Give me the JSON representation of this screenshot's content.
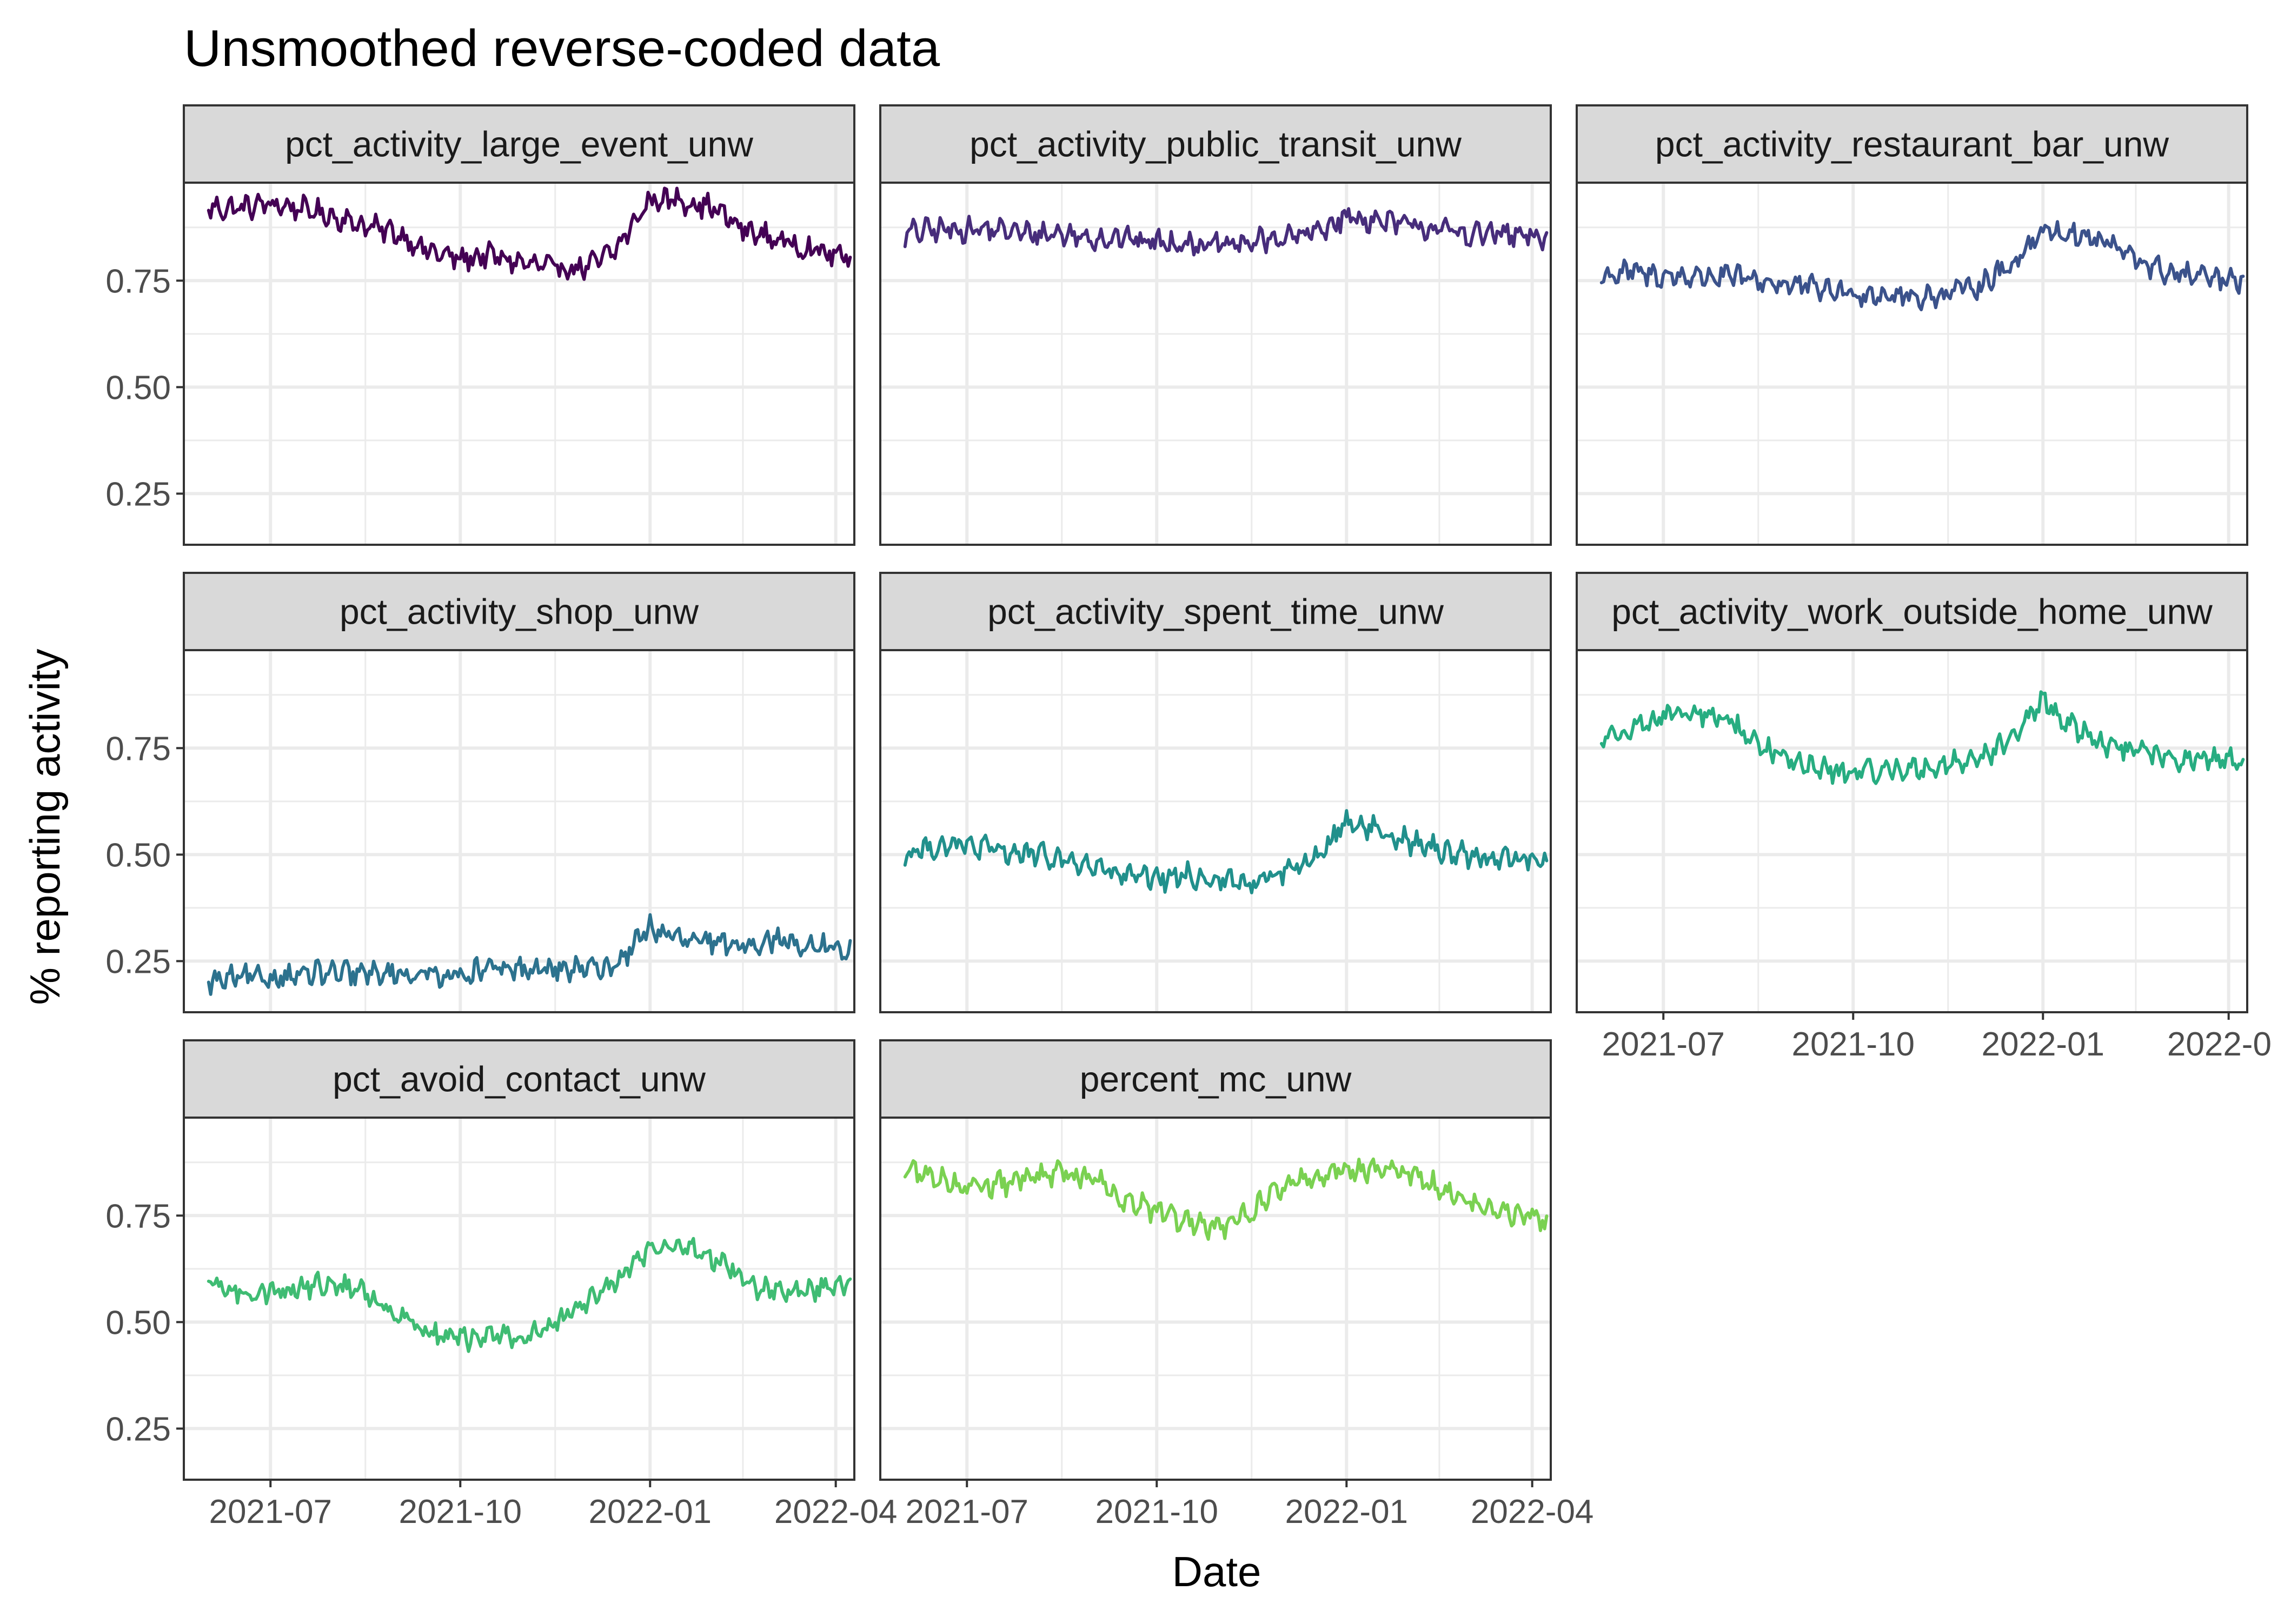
{
  "title": "Unsmoothed reverse-coded data",
  "xlabel": "Date",
  "ylabel": "% reporting activity",
  "chart_data": {
    "type": "line",
    "facets": 8,
    "facet_columns": 3,
    "x_ticks": [
      "2021-07",
      "2021-10",
      "2022-01",
      "2022-04"
    ],
    "x_tick_dates": [
      "2021-07-01",
      "2021-10-01",
      "2022-01-01",
      "2022-04-01"
    ],
    "xlim": [
      "2021-05-20",
      "2022-04-10"
    ],
    "y_ticks": [
      "0.25",
      "0.50",
      "0.75"
    ],
    "y_tick_values": [
      0.25,
      0.5,
      0.75
    ],
    "ylim": [
      0.13,
      0.98
    ],
    "grid": true,
    "series": [
      {
        "name": "pct_activity_large_event_unw",
        "color": "#440154",
        "x": [
          "2021-06-01",
          "2021-06-15",
          "2021-07-01",
          "2021-07-15",
          "2021-08-01",
          "2021-08-15",
          "2021-09-01",
          "2021-09-15",
          "2021-10-01",
          "2021-10-15",
          "2021-11-01",
          "2021-11-15",
          "2021-12-01",
          "2021-12-15",
          "2022-01-01",
          "2022-01-15",
          "2022-02-01",
          "2022-02-15",
          "2022-03-01",
          "2022-03-15",
          "2022-04-01",
          "2022-04-08"
        ],
        "y": [
          0.92,
          0.92,
          0.93,
          0.92,
          0.9,
          0.88,
          0.86,
          0.82,
          0.8,
          0.81,
          0.79,
          0.78,
          0.78,
          0.82,
          0.94,
          0.94,
          0.92,
          0.87,
          0.85,
          0.83,
          0.81,
          0.8
        ]
      },
      {
        "name": "pct_activity_public_transit_unw",
        "color": "#472D7B",
        "x": [
          "2021-06-01",
          "2021-06-15",
          "2021-07-01",
          "2021-07-15",
          "2021-08-01",
          "2021-08-15",
          "2021-09-01",
          "2021-09-15",
          "2021-10-01",
          "2021-10-15",
          "2021-11-01",
          "2021-11-15",
          "2021-12-01",
          "2021-12-15",
          "2022-01-01",
          "2022-01-15",
          "2022-02-01",
          "2022-02-15",
          "2022-03-01",
          "2022-03-15",
          "2022-04-01",
          "2022-04-08"
        ],
        "y": [
          0.86,
          0.87,
          0.87,
          0.87,
          0.86,
          0.86,
          0.85,
          0.85,
          0.84,
          0.84,
          0.83,
          0.84,
          0.85,
          0.86,
          0.9,
          0.89,
          0.88,
          0.87,
          0.86,
          0.86,
          0.85,
          0.85
        ]
      },
      {
        "name": "pct_activity_restaurant_bar_unw",
        "color": "#3B528B",
        "x": [
          "2021-06-01",
          "2021-06-15",
          "2021-07-01",
          "2021-07-15",
          "2021-08-01",
          "2021-08-15",
          "2021-09-01",
          "2021-09-15",
          "2021-10-01",
          "2021-10-15",
          "2021-11-01",
          "2021-11-15",
          "2021-12-01",
          "2021-12-15",
          "2022-01-01",
          "2022-01-15",
          "2022-02-01",
          "2022-02-15",
          "2022-03-01",
          "2022-03-15",
          "2022-04-01",
          "2022-04-08"
        ],
        "y": [
          0.76,
          0.77,
          0.76,
          0.76,
          0.76,
          0.75,
          0.74,
          0.73,
          0.72,
          0.72,
          0.71,
          0.72,
          0.74,
          0.78,
          0.87,
          0.86,
          0.84,
          0.8,
          0.77,
          0.76,
          0.75,
          0.74
        ]
      },
      {
        "name": "pct_activity_shop_unw",
        "color": "#2C728E",
        "x": [
          "2021-06-01",
          "2021-06-15",
          "2021-07-01",
          "2021-07-15",
          "2021-08-01",
          "2021-08-15",
          "2021-09-01",
          "2021-09-15",
          "2021-10-01",
          "2021-10-15",
          "2021-11-01",
          "2021-11-15",
          "2021-12-01",
          "2021-12-15",
          "2022-01-01",
          "2022-01-15",
          "2022-02-01",
          "2022-02-15",
          "2022-03-01",
          "2022-03-15",
          "2022-04-01",
          "2022-04-08"
        ],
        "y": [
          0.2,
          0.21,
          0.21,
          0.22,
          0.22,
          0.22,
          0.22,
          0.22,
          0.22,
          0.23,
          0.23,
          0.23,
          0.23,
          0.24,
          0.33,
          0.3,
          0.29,
          0.29,
          0.3,
          0.29,
          0.28,
          0.27
        ]
      },
      {
        "name": "pct_activity_spent_time_unw",
        "color": "#21908C",
        "x": [
          "2021-06-01",
          "2021-06-15",
          "2021-07-01",
          "2021-07-15",
          "2021-08-01",
          "2021-08-15",
          "2021-09-01",
          "2021-09-15",
          "2021-10-01",
          "2021-10-15",
          "2021-11-01",
          "2021-11-15",
          "2021-12-01",
          "2021-12-15",
          "2022-01-01",
          "2022-01-15",
          "2022-02-01",
          "2022-02-15",
          "2022-03-01",
          "2022-03-15",
          "2022-04-01",
          "2022-04-08"
        ],
        "y": [
          0.5,
          0.52,
          0.52,
          0.51,
          0.5,
          0.49,
          0.47,
          0.45,
          0.44,
          0.45,
          0.44,
          0.43,
          0.46,
          0.48,
          0.58,
          0.56,
          0.53,
          0.51,
          0.5,
          0.49,
          0.49,
          0.49
        ]
      },
      {
        "name": "pct_activity_work_outside_home_unw",
        "color": "#27AD81",
        "x": [
          "2021-06-01",
          "2021-06-15",
          "2021-07-01",
          "2021-07-15",
          "2021-08-01",
          "2021-08-15",
          "2021-09-01",
          "2021-09-15",
          "2021-10-01",
          "2021-10-15",
          "2021-11-01",
          "2021-11-15",
          "2021-12-01",
          "2021-12-15",
          "2022-01-01",
          "2022-01-15",
          "2022-02-01",
          "2022-02-15",
          "2022-03-01",
          "2022-03-15",
          "2022-04-01",
          "2022-04-08"
        ],
        "y": [
          0.77,
          0.8,
          0.82,
          0.83,
          0.82,
          0.76,
          0.72,
          0.7,
          0.69,
          0.7,
          0.7,
          0.71,
          0.73,
          0.76,
          0.86,
          0.8,
          0.76,
          0.74,
          0.73,
          0.72,
          0.72,
          0.72
        ]
      },
      {
        "name": "pct_avoid_contact_unw",
        "color": "#3FBC73",
        "x": [
          "2021-06-01",
          "2021-06-15",
          "2021-07-01",
          "2021-07-15",
          "2021-08-01",
          "2021-08-15",
          "2021-09-01",
          "2021-09-15",
          "2021-10-01",
          "2021-10-15",
          "2021-11-01",
          "2021-11-15",
          "2021-12-01",
          "2021-12-15",
          "2022-01-01",
          "2022-01-15",
          "2022-02-01",
          "2022-02-15",
          "2022-03-01",
          "2022-03-15",
          "2022-04-01",
          "2022-04-08"
        ],
        "y": [
          0.59,
          0.57,
          0.57,
          0.58,
          0.59,
          0.57,
          0.52,
          0.48,
          0.46,
          0.47,
          0.46,
          0.49,
          0.55,
          0.6,
          0.67,
          0.68,
          0.65,
          0.6,
          0.57,
          0.57,
          0.58,
          0.59
        ]
      },
      {
        "name": "percent_mc_unw",
        "color": "#7AD151",
        "x": [
          "2021-06-01",
          "2021-06-15",
          "2021-07-01",
          "2021-07-15",
          "2021-08-01",
          "2021-08-15",
          "2021-09-01",
          "2021-09-15",
          "2021-10-01",
          "2021-10-15",
          "2021-11-01",
          "2021-11-15",
          "2021-12-01",
          "2021-12-15",
          "2022-01-01",
          "2022-01-15",
          "2022-02-01",
          "2022-02-15",
          "2022-03-01",
          "2022-03-15",
          "2022-04-01",
          "2022-04-08"
        ],
        "y": [
          0.86,
          0.84,
          0.82,
          0.82,
          0.84,
          0.85,
          0.84,
          0.79,
          0.76,
          0.73,
          0.72,
          0.76,
          0.82,
          0.84,
          0.86,
          0.86,
          0.85,
          0.82,
          0.78,
          0.76,
          0.75,
          0.73
        ]
      }
    ]
  }
}
